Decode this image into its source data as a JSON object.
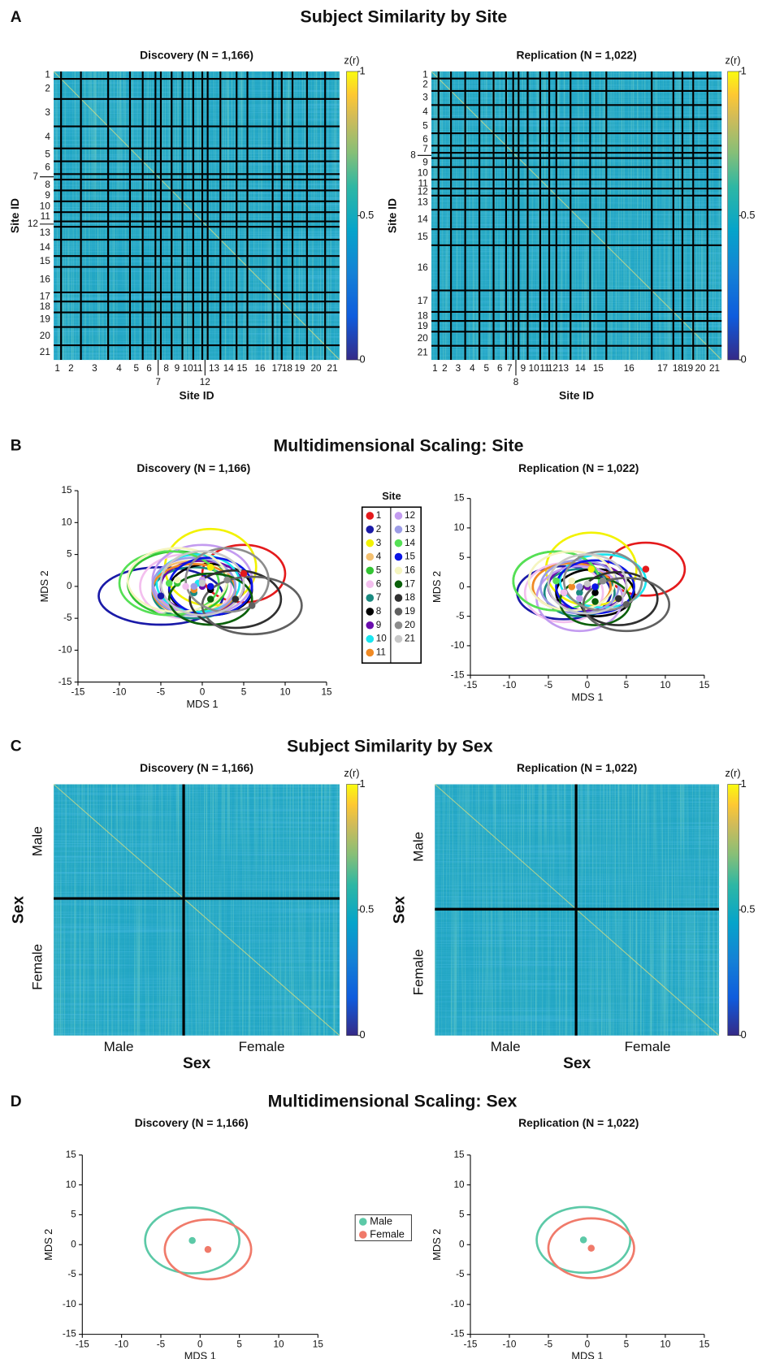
{
  "panels": [
    {
      "letter": "A",
      "title": "Subject Similarity by Site"
    },
    {
      "letter": "B",
      "title": "Multidimensional Scaling: Site"
    },
    {
      "letter": "C",
      "title": "Subject Similarity by Sex"
    },
    {
      "letter": "D",
      "title": "Multidimensional Scaling: Sex"
    }
  ],
  "chart_data": [
    {
      "type": "heatmap",
      "title": "Discovery (N = 1,166)",
      "xlabel": "Site ID",
      "ylabel": "Site ID",
      "categories": [
        "1",
        "2",
        "3",
        "4",
        "5",
        "6",
        "7",
        "8",
        "9",
        "10",
        "11",
        "12",
        "13",
        "14",
        "15",
        "16",
        "17",
        "18",
        "19",
        "20",
        "21"
      ],
      "counts": [
        30,
        81,
        111,
        89,
        52,
        52,
        22,
        44,
        44,
        44,
        37,
        22,
        52,
        66,
        44,
        103,
        37,
        44,
        59,
        74,
        59
      ],
      "colorbar": {
        "label": "z(r)",
        "lim": [
          0,
          1
        ],
        "ticks": [
          0,
          0.5,
          1
        ]
      }
    },
    {
      "type": "heatmap",
      "title": "Replication (N = 1,022)",
      "xlabel": "Site ID",
      "ylabel": "Site ID",
      "categories": [
        "1",
        "2",
        "3",
        "4",
        "5",
        "6",
        "7",
        "8",
        "9",
        "10",
        "11",
        "12",
        "13",
        "14",
        "15",
        "16",
        "17",
        "18",
        "19",
        "20",
        "21"
      ],
      "counts": [
        25,
        44,
        50,
        50,
        50,
        44,
        25,
        19,
        32,
        44,
        32,
        25,
        50,
        69,
        57,
        160,
        76,
        32,
        38,
        50,
        50
      ],
      "colorbar": {
        "label": "z(r)",
        "lim": [
          0,
          1
        ],
        "ticks": [
          0,
          0.5,
          1
        ]
      }
    },
    {
      "type": "scatter",
      "title": "Discovery (N = 1,166)",
      "xlabel": "MDS 1",
      "ylabel": "MDS 2",
      "xlim": [
        -15,
        15
      ],
      "ylim": [
        -15,
        15
      ],
      "xticks": [
        -15,
        -10,
        -5,
        0,
        5,
        10,
        15
      ],
      "yticks": [
        -15,
        -10,
        -5,
        0,
        5,
        10,
        15
      ],
      "legend_title": "Site",
      "series": [
        {
          "name": "1",
          "color": "#e41a1c",
          "center": [
            5,
            2
          ],
          "radii": [
            5,
            4.5
          ]
        },
        {
          "name": "2",
          "color": "#1a1aa8",
          "center": [
            -5,
            -1.5
          ],
          "radii": [
            7.5,
            4.5
          ]
        },
        {
          "name": "3",
          "color": "#f2f200",
          "center": [
            1,
            3
          ],
          "radii": [
            5.5,
            6
          ]
        },
        {
          "name": "4",
          "color": "#f4c070",
          "center": [
            -1,
            0
          ],
          "radii": [
            5,
            4
          ]
        },
        {
          "name": "5",
          "color": "#33c433",
          "center": [
            -3,
            0.5
          ],
          "radii": [
            6,
            5
          ]
        },
        {
          "name": "6",
          "color": "#f3bfee",
          "center": [
            -2,
            0
          ],
          "radii": [
            5.5,
            5
          ]
        },
        {
          "name": "7",
          "color": "#1a8a80",
          "center": [
            -1,
            -1
          ],
          "radii": [
            5,
            4
          ]
        },
        {
          "name": "8",
          "color": "#000000",
          "center": [
            1,
            -0.5
          ],
          "radii": [
            5,
            4
          ]
        },
        {
          "name": "9",
          "color": "#6a0dad",
          "center": [
            0,
            0
          ],
          "radii": [
            5,
            4
          ]
        },
        {
          "name": "10",
          "color": "#1ae6f0",
          "center": [
            -0.5,
            0.5
          ],
          "radii": [
            5,
            4.5
          ]
        },
        {
          "name": "11",
          "color": "#f08a24",
          "center": [
            -1,
            -0.5
          ],
          "radii": [
            5,
            4
          ]
        },
        {
          "name": "12",
          "color": "#c39bf0",
          "center": [
            0,
            1
          ],
          "radii": [
            6,
            5.5
          ]
        },
        {
          "name": "13",
          "color": "#9c9ce6",
          "center": [
            -1,
            0
          ],
          "radii": [
            5,
            4.5
          ]
        },
        {
          "name": "14",
          "color": "#55e055",
          "center": [
            -4,
            0.5
          ],
          "radii": [
            6,
            5
          ]
        },
        {
          "name": "15",
          "color": "#0a14e6",
          "center": [
            1,
            0
          ],
          "radii": [
            5,
            4.5
          ]
        },
        {
          "name": "16",
          "color": "#f5f5c0",
          "center": [
            -3,
            1
          ],
          "radii": [
            6,
            5
          ]
        },
        {
          "name": "17",
          "color": "#0a600a",
          "center": [
            1,
            -2
          ],
          "radii": [
            5,
            4
          ]
        },
        {
          "name": "18",
          "color": "#303030",
          "center": [
            4,
            -2
          ],
          "radii": [
            5.5,
            4.5
          ]
        },
        {
          "name": "19",
          "color": "#606060",
          "center": [
            6,
            -3
          ],
          "radii": [
            6,
            4.5
          ]
        },
        {
          "name": "20",
          "color": "#8c8c8c",
          "center": [
            3,
            1
          ],
          "radii": [
            5,
            5
          ]
        },
        {
          "name": "21",
          "color": "#c8c8c8",
          "center": [
            0,
            0.5
          ],
          "radii": [
            5,
            5
          ]
        }
      ]
    },
    {
      "type": "scatter",
      "title": "Replication (N = 1,022)",
      "xlabel": "MDS 1",
      "ylabel": "MDS 2",
      "xlim": [
        -15,
        15
      ],
      "ylim": [
        -15,
        15
      ],
      "xticks": [
        -15,
        -10,
        -5,
        0,
        5,
        10,
        15
      ],
      "yticks": [
        -15,
        -10,
        -5,
        0,
        5,
        10,
        15
      ],
      "series": [
        {
          "color": "#e41a1c",
          "center": [
            7.5,
            3
          ],
          "radii": [
            5,
            4.5
          ]
        },
        {
          "color": "#1a1aa8",
          "center": [
            -3,
            -1
          ],
          "radii": [
            6,
            4.5
          ]
        },
        {
          "color": "#f2f200",
          "center": [
            0.5,
            3
          ],
          "radii": [
            5.8,
            6.2
          ]
        },
        {
          "color": "#f4c070",
          "center": [
            -2,
            0
          ],
          "radii": [
            5,
            4
          ]
        },
        {
          "color": "#33c433",
          "center": [
            -4,
            1
          ],
          "radii": [
            5.5,
            5
          ]
        },
        {
          "color": "#f3bfee",
          "center": [
            -3,
            -1
          ],
          "radii": [
            5,
            5
          ]
        },
        {
          "color": "#1a8a80",
          "center": [
            -1,
            -1
          ],
          "radii": [
            4.5,
            4
          ]
        },
        {
          "color": "#000000",
          "center": [
            1,
            -1
          ],
          "radii": [
            5,
            4
          ]
        },
        {
          "color": "#6a0dad",
          "center": [
            0,
            0
          ],
          "radii": [
            5,
            4
          ]
        },
        {
          "color": "#1ae6f0",
          "center": [
            2,
            1
          ],
          "radii": [
            5.5,
            4.5
          ]
        },
        {
          "color": "#f08a24",
          "center": [
            -2,
            0
          ],
          "radii": [
            5,
            4
          ]
        },
        {
          "color": "#c39bf0",
          "center": [
            -1,
            -2
          ],
          "radii": [
            5.5,
            5.5
          ]
        },
        {
          "color": "#9c9ce6",
          "center": [
            -1,
            0
          ],
          "radii": [
            5,
            4.5
          ]
        },
        {
          "color": "#55e055",
          "center": [
            -4,
            1
          ],
          "radii": [
            5.5,
            5
          ]
        },
        {
          "color": "#0a14e6",
          "center": [
            1,
            0
          ],
          "radii": [
            5,
            4.5
          ]
        },
        {
          "color": "#f5f5c0",
          "center": [
            -2,
            1
          ],
          "radii": [
            5.5,
            5
          ]
        },
        {
          "color": "#0a600a",
          "center": [
            1,
            -2.5
          ],
          "radii": [
            4.5,
            4
          ]
        },
        {
          "color": "#303030",
          "center": [
            4,
            -2
          ],
          "radii": [
            5,
            4.5
          ]
        },
        {
          "color": "#606060",
          "center": [
            5,
            -3
          ],
          "radii": [
            5.5,
            4.5
          ]
        },
        {
          "color": "#8c8c8c",
          "center": [
            2,
            1
          ],
          "radii": [
            5,
            5
          ]
        },
        {
          "color": "#c8c8c8",
          "center": [
            0,
            0.5
          ],
          "radii": [
            5,
            5
          ]
        }
      ]
    },
    {
      "type": "heatmap",
      "title": "Discovery (N = 1,166)",
      "xlabel": "Sex",
      "ylabel": "Sex",
      "categories": [
        "Male",
        "Female"
      ],
      "counts": [
        530,
        636
      ],
      "colorbar": {
        "label": "z(r)",
        "lim": [
          0,
          1
        ],
        "ticks": [
          0,
          0.5,
          1
        ]
      }
    },
    {
      "type": "heatmap",
      "title": "Replication (N = 1,022)",
      "xlabel": "Sex",
      "ylabel": "Sex",
      "categories": [
        "Male",
        "Female"
      ],
      "counts": [
        508,
        514
      ],
      "colorbar": {
        "label": "z(r)",
        "lim": [
          0,
          1
        ],
        "ticks": [
          0,
          0.5,
          1
        ]
      }
    },
    {
      "type": "scatter",
      "title": "Discovery (N = 1,166)",
      "xlabel": "MDS 1",
      "ylabel": "MDS 2",
      "xlim": [
        -15,
        15
      ],
      "ylim": [
        -15,
        15
      ],
      "xticks": [
        -15,
        -10,
        -5,
        0,
        5,
        10,
        15
      ],
      "yticks": [
        -15,
        -10,
        -5,
        0,
        5,
        10,
        15
      ],
      "series": [
        {
          "name": "Male",
          "color": "#5cc9a7",
          "center": [
            -1,
            0.7
          ],
          "radii": [
            6,
            5.5
          ]
        },
        {
          "name": "Female",
          "color": "#f07a6a",
          "center": [
            1,
            -0.8
          ],
          "radii": [
            5.5,
            5
          ]
        }
      ]
    },
    {
      "type": "scatter",
      "title": "Replication (N = 1,022)",
      "xlabel": "MDS 1",
      "ylabel": "MDS 2",
      "xlim": [
        -15,
        15
      ],
      "ylim": [
        -15,
        15
      ],
      "xticks": [
        -15,
        -10,
        -5,
        0,
        5,
        10,
        15
      ],
      "yticks": [
        -15,
        -10,
        -5,
        0,
        5,
        10,
        15
      ],
      "series": [
        {
          "color": "#5cc9a7",
          "center": [
            -0.5,
            0.8
          ],
          "radii": [
            6,
            5.5
          ]
        },
        {
          "color": "#f07a6a",
          "center": [
            0.5,
            -0.6
          ],
          "radii": [
            5.5,
            5
          ]
        }
      ]
    }
  ]
}
